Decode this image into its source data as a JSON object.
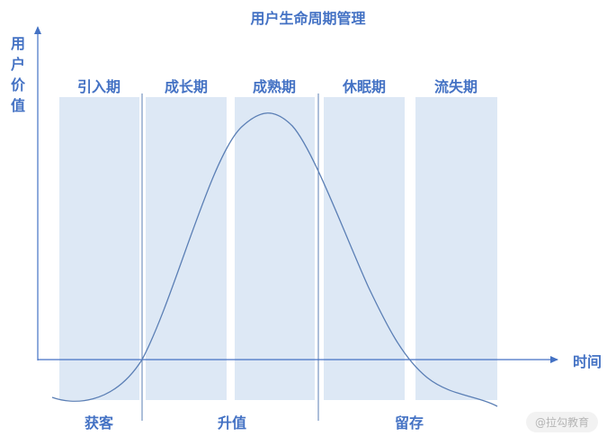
{
  "title": "用户生命周期管理",
  "y_axis_label": [
    "用",
    "户",
    "价",
    "值"
  ],
  "x_axis_label": "时间",
  "stages": [
    "引入期",
    "成长期",
    "成熟期",
    "休眠期",
    "流失期"
  ],
  "phases": [
    "获客",
    "升值",
    "留存"
  ],
  "watermark": "@拉勾教育",
  "colors": {
    "accent": "#4472c4",
    "band": "#dde8f5",
    "curve": "#5b7fb5"
  }
}
